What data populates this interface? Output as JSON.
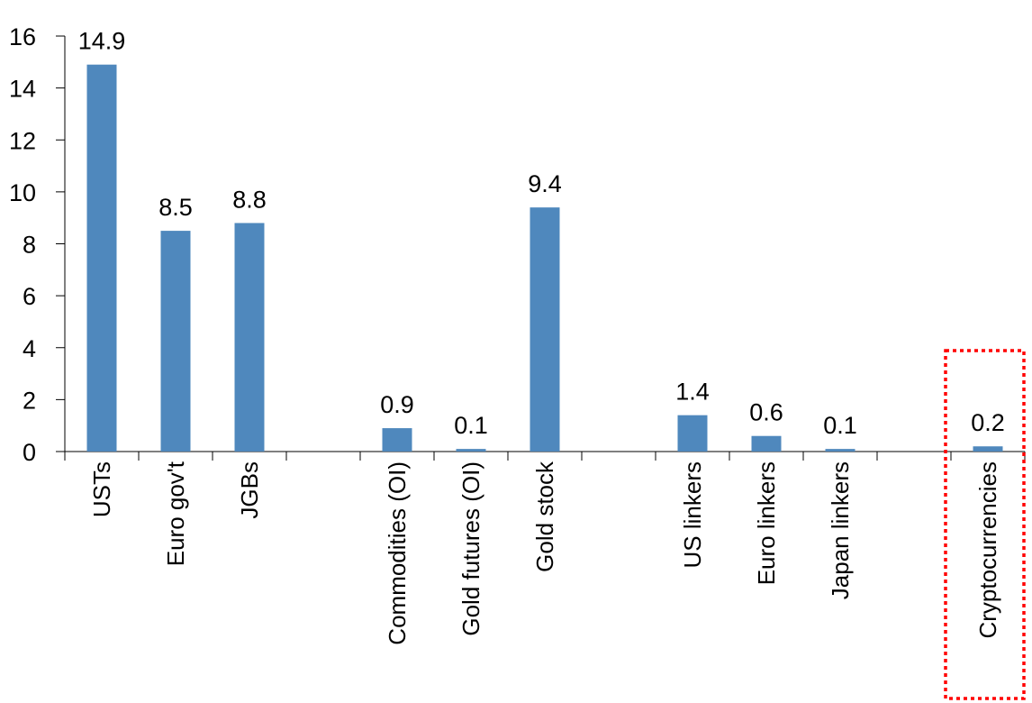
{
  "chart_data": {
    "type": "bar",
    "title": "",
    "xlabel": "",
    "ylabel": "",
    "ylim": [
      0,
      16
    ],
    "yticks": [
      "0",
      "2",
      "4",
      "6",
      "8",
      "10",
      "12",
      "14",
      "16"
    ],
    "grid": false,
    "bar_color": "#4f88bd",
    "categories": [
      "USTs",
      "Euro gov't",
      "JGBs",
      "",
      "Commodities (OI)",
      "Gold futures (OI)",
      "Gold stock",
      "",
      "US linkers",
      "Euro linkers",
      "Japan linkers",
      "",
      "Cryptocurrencies"
    ],
    "values": [
      14.9,
      8.5,
      8.8,
      null,
      0.9,
      0.1,
      9.4,
      null,
      1.4,
      0.6,
      0.1,
      null,
      0.2
    ],
    "data_labels": [
      "14.9",
      "8.5",
      "8.8",
      "",
      "0.9",
      "0.1",
      "9.4",
      "",
      "1.4",
      "0.6",
      "0.1",
      "",
      "0.2"
    ],
    "highlight": {
      "category": "Cryptocurrencies",
      "style": "red dotted box",
      "color": "#ff0000"
    }
  }
}
